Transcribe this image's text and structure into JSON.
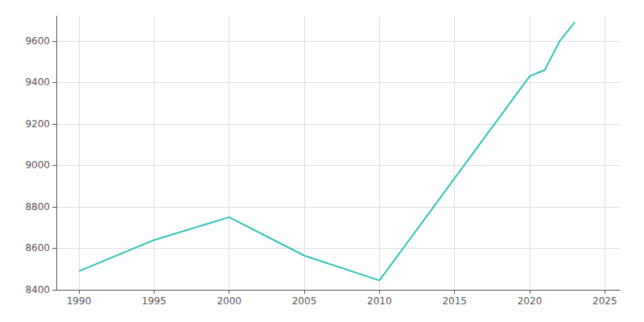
{
  "chart_data": {
    "type": "line",
    "x": [
      1990,
      1995,
      2000,
      2005,
      2010,
      2020,
      2021,
      2022,
      2023
    ],
    "values": [
      8490,
      8640,
      8750,
      8565,
      8445,
      9430,
      9460,
      9600,
      9690
    ],
    "color": "#2ec4b6",
    "xlim": [
      1988.5,
      2026
    ],
    "ylim": [
      8400,
      9720
    ],
    "xticks": [
      1990,
      1995,
      2000,
      2005,
      2010,
      2015,
      2020,
      2025
    ],
    "yticks": [
      8400,
      8600,
      8800,
      9000,
      9200,
      9400,
      9600
    ],
    "grid": true
  }
}
